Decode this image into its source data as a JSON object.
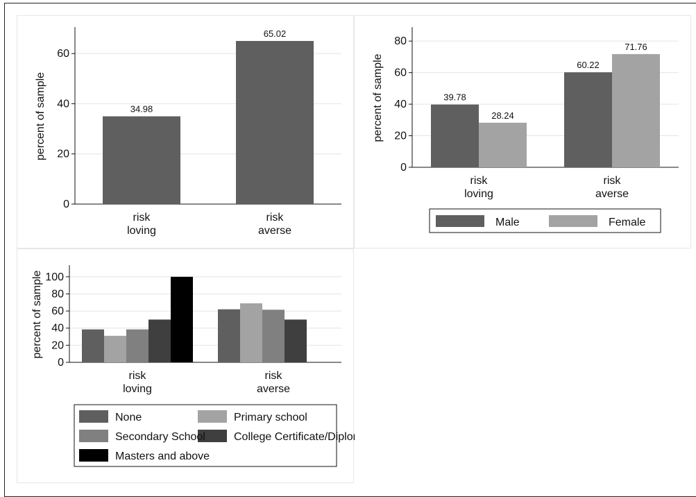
{
  "chart_data": [
    {
      "type": "bar",
      "categories": [
        "risk\nloving",
        "risk\naverse"
      ],
      "series": [
        {
          "values": [
            34.98,
            65.02
          ],
          "labels": [
            "34.98",
            "65.02"
          ]
        }
      ],
      "ylabel": "percent of sample",
      "xlabel": "",
      "ylim": [
        0,
        70
      ],
      "yticks": [
        0,
        20,
        40,
        60
      ],
      "grid": true,
      "legend": null,
      "colors": [
        "#5f5f5f"
      ]
    },
    {
      "type": "bar",
      "categories": [
        "risk\nloving",
        "risk\naverse"
      ],
      "series": [
        {
          "name": "Male",
          "values": [
            39.78,
            60.22
          ],
          "labels": [
            "39.78",
            "60.22"
          ]
        },
        {
          "name": "Female",
          "values": [
            28.24,
            71.76
          ],
          "labels": [
            "28.24",
            "71.76"
          ]
        }
      ],
      "ylabel": "percent of sample",
      "xlabel": "",
      "ylim": [
        0,
        88
      ],
      "yticks": [
        0,
        20,
        40,
        60,
        80
      ],
      "grid": true,
      "legend": "bottom",
      "colors": [
        "#5f5f5f",
        "#a3a3a3"
      ]
    },
    {
      "type": "bar",
      "categories": [
        "risk\nloving",
        "risk\naverse"
      ],
      "series": [
        {
          "name": "None",
          "values": [
            38.5,
            62.0
          ]
        },
        {
          "name": "Primary school",
          "values": [
            31.0,
            69.0
          ]
        },
        {
          "name": "Secondary School",
          "values": [
            38.5,
            61.5
          ]
        },
        {
          "name": "College Certificate/Diploma",
          "values": [
            50.0,
            50.0
          ]
        },
        {
          "name": "Masters and above",
          "values": [
            100.0,
            0
          ]
        }
      ],
      "ylabel": "percent of sample",
      "xlabel": "",
      "ylim": [
        0,
        112
      ],
      "yticks": [
        0,
        20,
        40,
        60,
        80,
        100
      ],
      "grid": true,
      "legend": "bottom",
      "colors": [
        "#5f5f5f",
        "#a3a3a3",
        "#808080",
        "#3f3f3f",
        "#000000"
      ]
    }
  ]
}
